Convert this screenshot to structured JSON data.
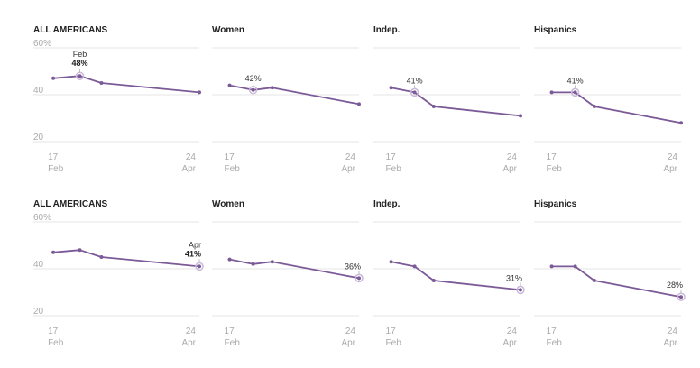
{
  "colors": {
    "line": "#7b5a97",
    "grid": "#e6e6e6",
    "axis_text": "#aaaaaa",
    "marker_ring": "#c9b8d9"
  },
  "chart_data": [
    {
      "type": "line",
      "label": "ALL AMERICANS",
      "x": [
        "Feb 17",
        "Mar 1",
        "Mar 10",
        "Apr 24"
      ],
      "values": [
        47,
        48,
        45,
        41
      ],
      "ylim": [
        20,
        60
      ],
      "yticks": [
        "60%",
        "40",
        "20"
      ],
      "xticks": [
        [
          "17",
          "Feb"
        ],
        [
          "24",
          "Apr"
        ]
      ],
      "annotation": {
        "index": 1,
        "line1": "Feb",
        "line2": "48%"
      }
    },
    {
      "type": "line",
      "label": "Women",
      "x": [
        "Feb 17",
        "Mar 1",
        "Mar 10",
        "Apr 24"
      ],
      "values": [
        44,
        42,
        43,
        36
      ],
      "ylim": [
        20,
        60
      ],
      "yticks": [
        "",
        "",
        ""
      ],
      "xticks": [
        [
          "17",
          "Feb"
        ],
        [
          "24",
          "Apr"
        ]
      ],
      "annotation": {
        "index": 1,
        "line1": "42%",
        "line2": ""
      }
    },
    {
      "type": "line",
      "label": "Indep.",
      "x": [
        "Feb 17",
        "Mar 1",
        "Mar 10",
        "Apr 24"
      ],
      "values": [
        43,
        41,
        35,
        31
      ],
      "ylim": [
        20,
        60
      ],
      "yticks": [
        "",
        "",
        ""
      ],
      "xticks": [
        [
          "17",
          "Feb"
        ],
        [
          "24",
          "Apr"
        ]
      ],
      "annotation": {
        "index": 1,
        "line1": "41%",
        "line2": ""
      }
    },
    {
      "type": "line",
      "label": "Hispanics",
      "x": [
        "Feb 17",
        "Mar 1",
        "Mar 10",
        "Apr 24"
      ],
      "values": [
        41,
        41,
        35,
        28
      ],
      "ylim": [
        20,
        60
      ],
      "yticks": [
        "",
        "",
        ""
      ],
      "xticks": [
        [
          "17",
          "Feb"
        ],
        [
          "24",
          "Apr"
        ]
      ],
      "annotation": {
        "index": 1,
        "line1": "41%",
        "line2": ""
      }
    },
    {
      "type": "line",
      "label": "ALL AMERICANS",
      "x": [
        "Feb 17",
        "Mar 1",
        "Mar 10",
        "Apr 24"
      ],
      "values": [
        47,
        48,
        45,
        41
      ],
      "ylim": [
        20,
        60
      ],
      "yticks": [
        "60%",
        "40",
        "20"
      ],
      "xticks": [
        [
          "17",
          "Feb"
        ],
        [
          "24",
          "Apr"
        ]
      ],
      "annotation": {
        "index": 3,
        "line1": "Apr",
        "line2": "41%"
      }
    },
    {
      "type": "line",
      "label": "Women",
      "x": [
        "Feb 17",
        "Mar 1",
        "Mar 10",
        "Apr 24"
      ],
      "values": [
        44,
        42,
        43,
        36
      ],
      "ylim": [
        20,
        60
      ],
      "yticks": [
        "",
        "",
        ""
      ],
      "xticks": [
        [
          "17",
          "Feb"
        ],
        [
          "24",
          "Apr"
        ]
      ],
      "annotation": {
        "index": 3,
        "line1": "36%",
        "line2": ""
      }
    },
    {
      "type": "line",
      "label": "Indep.",
      "x": [
        "Feb 17",
        "Mar 1",
        "Mar 10",
        "Apr 24"
      ],
      "values": [
        43,
        41,
        35,
        31
      ],
      "ylim": [
        20,
        60
      ],
      "yticks": [
        "",
        "",
        ""
      ],
      "xticks": [
        [
          "17",
          "Feb"
        ],
        [
          "24",
          "Apr"
        ]
      ],
      "annotation": {
        "index": 3,
        "line1": "31%",
        "line2": ""
      }
    },
    {
      "type": "line",
      "label": "Hispanics",
      "x": [
        "Feb 17",
        "Mar 1",
        "Mar 10",
        "Apr 24"
      ],
      "values": [
        41,
        41,
        35,
        28
      ],
      "ylim": [
        20,
        60
      ],
      "yticks": [
        "",
        "",
        ""
      ],
      "xticks": [
        [
          "17",
          "Feb"
        ],
        [
          "24",
          "Apr"
        ]
      ],
      "annotation": {
        "index": 3,
        "line1": "28%",
        "line2": ""
      }
    }
  ]
}
